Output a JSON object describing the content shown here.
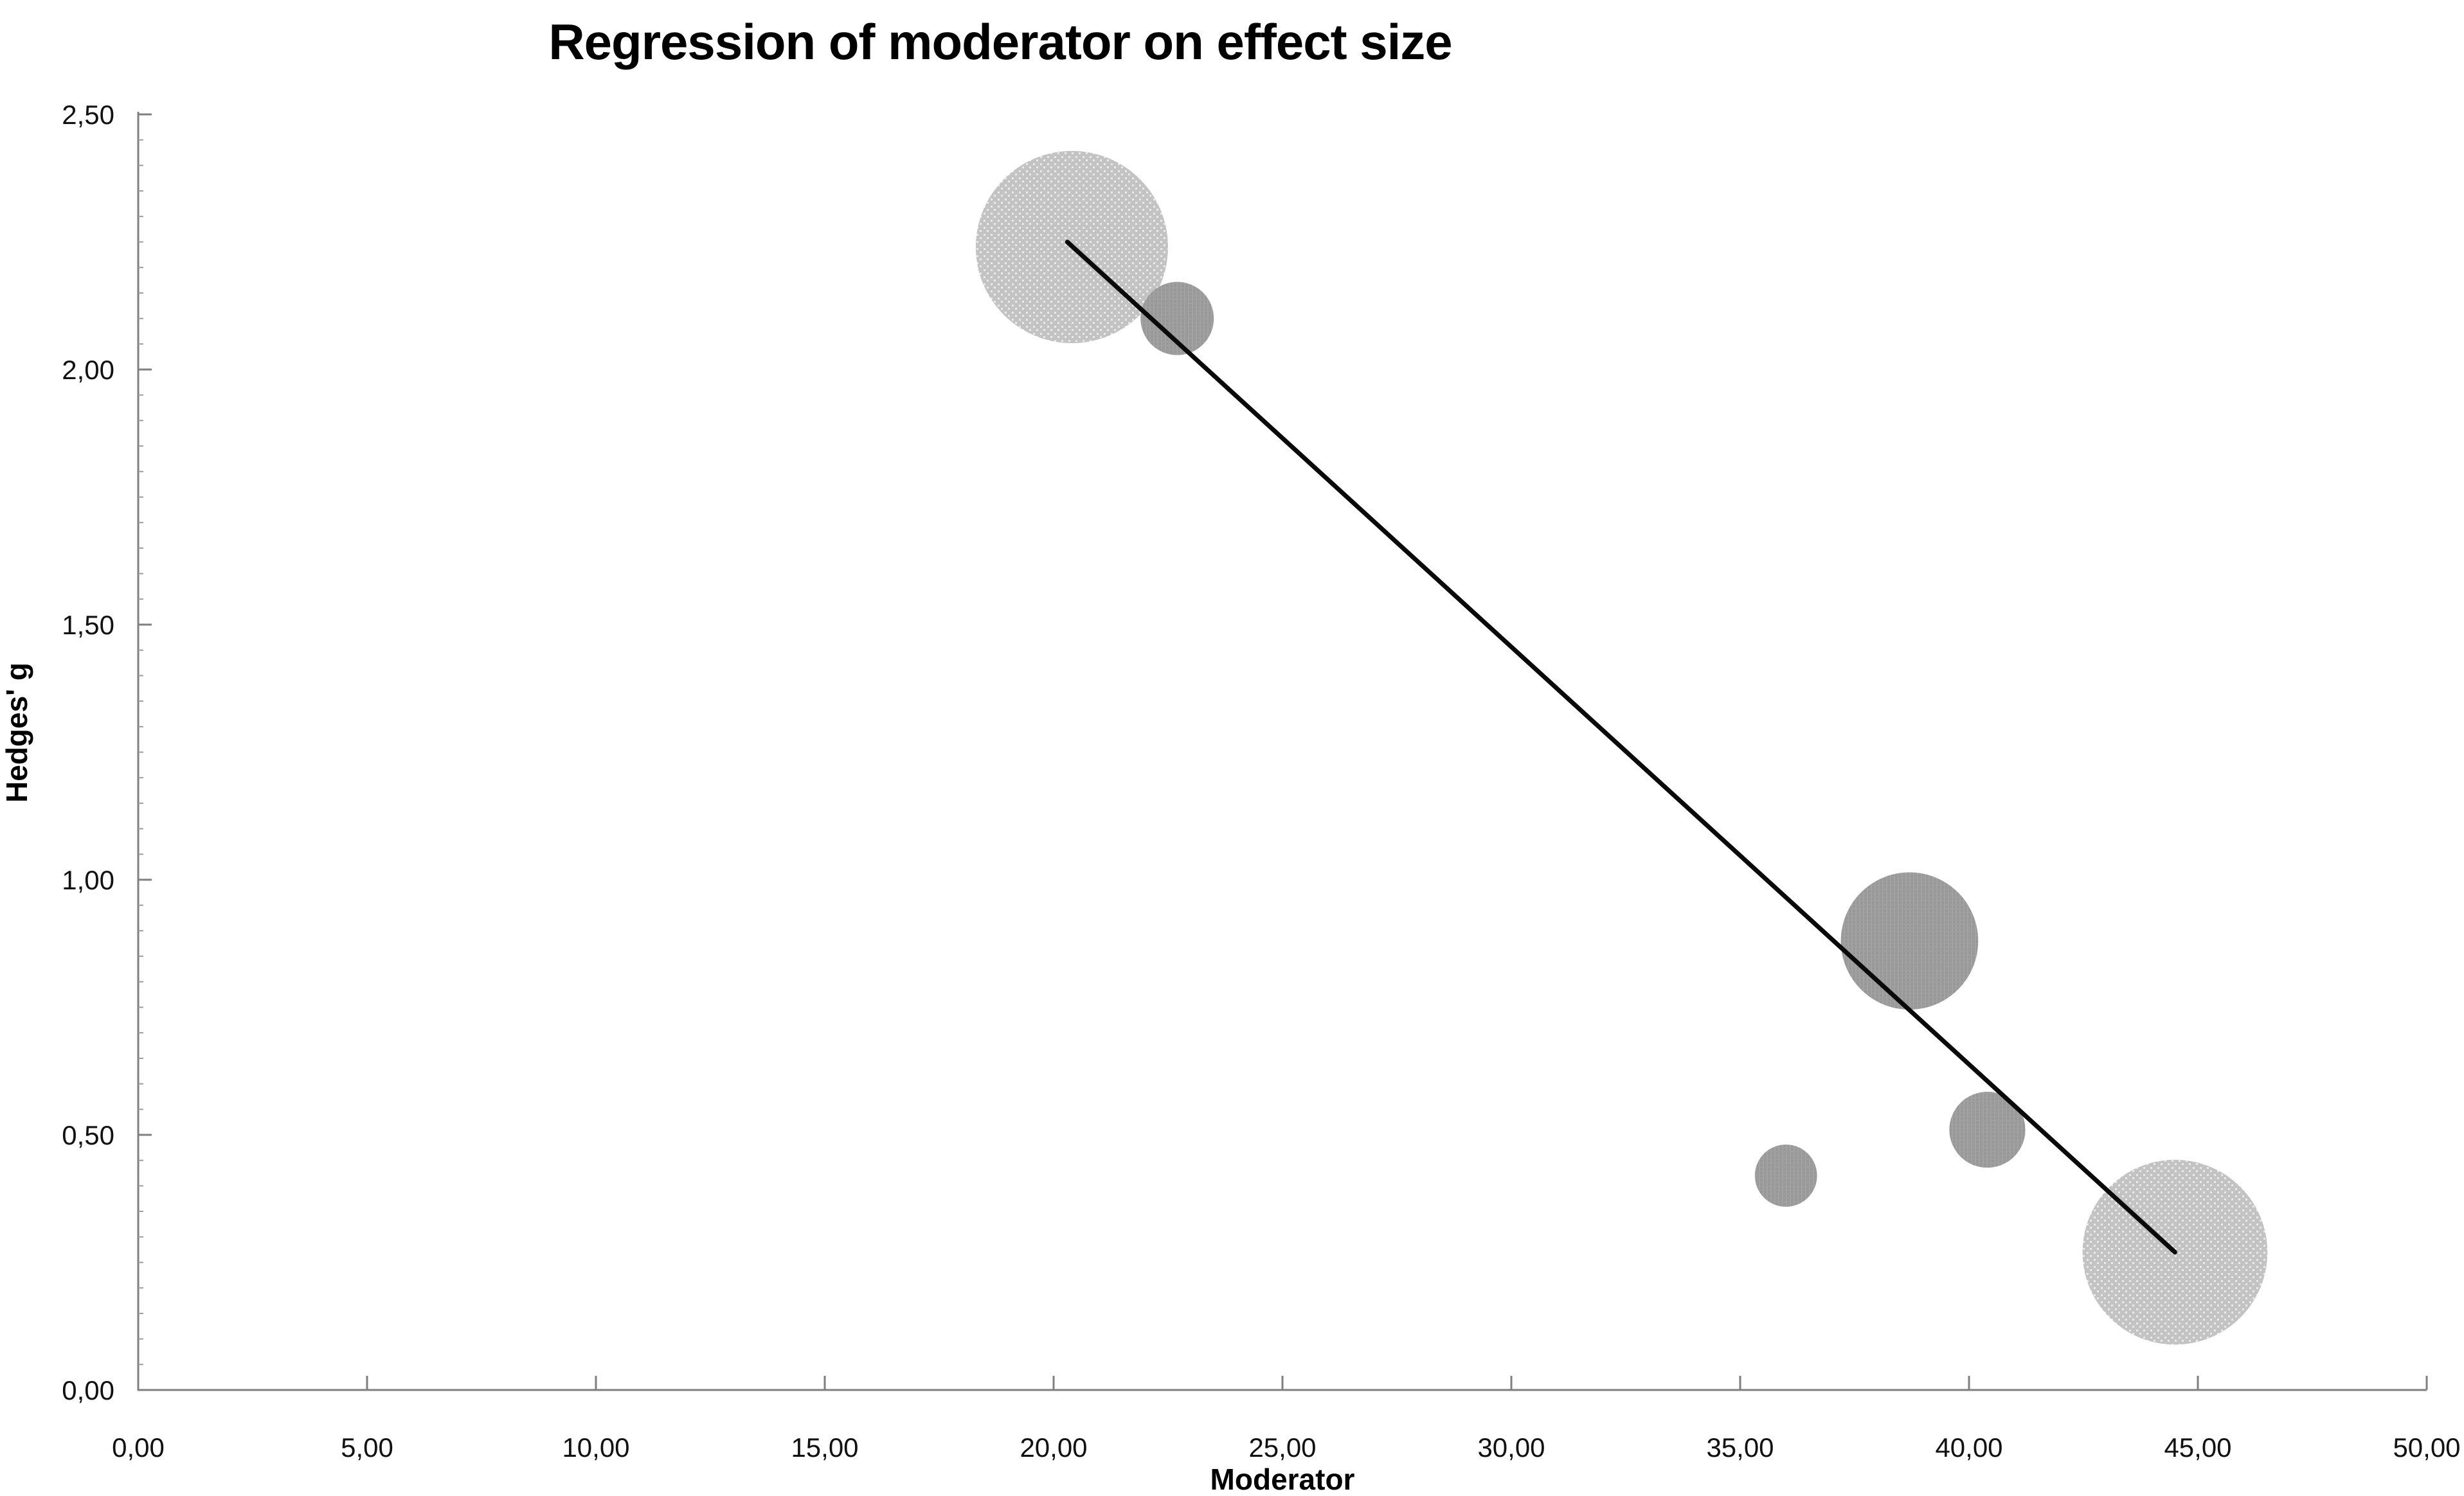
{
  "page": {
    "background_color": "#ffffff"
  },
  "chart_data": {
    "type": "scatter",
    "subtype": "bubble-meta-regression",
    "title": "Regression of moderator on effect size",
    "xlabel": "Moderator",
    "ylabel": "Hedges' g",
    "xlim": [
      0,
      50
    ],
    "ylim": [
      0,
      2.5
    ],
    "grid": "off",
    "legend": "none",
    "decimal_separator": ",",
    "x_ticks": {
      "values": [
        0,
        5,
        10,
        15,
        20,
        25,
        30,
        35,
        40,
        45,
        50
      ],
      "labels": [
        "0,00",
        "5,00",
        "10,00",
        "15,00",
        "20,00",
        "25,00",
        "30,00",
        "35,00",
        "40,00",
        "45,00",
        "50,00"
      ]
    },
    "y_ticks": {
      "values": [
        0,
        0.5,
        1,
        1.5,
        2,
        2.5
      ],
      "labels": [
        "0,00",
        "0,50",
        "1,00",
        "1,50",
        "2,00",
        "2,50"
      ]
    },
    "y_minor_tick_step": 0.05,
    "series": [
      {
        "name": "bubbles-light",
        "shade": "light",
        "points": [
          {
            "x": 20.4,
            "y": 2.24,
            "r": 2.1
          },
          {
            "x": 44.5,
            "y": 0.27,
            "r": 2.02
          }
        ]
      },
      {
        "name": "bubbles-dark",
        "shade": "dark",
        "points": [
          {
            "x": 22.7,
            "y": 2.1,
            "r": 0.8
          },
          {
            "x": 38.7,
            "y": 0.88,
            "r": 1.5
          },
          {
            "x": 40.4,
            "y": 0.51,
            "r": 0.83
          },
          {
            "x": 36.0,
            "y": 0.42,
            "r": 0.68
          }
        ]
      }
    ],
    "regression_line": {
      "x1": 20.3,
      "y1": 2.25,
      "x2": 44.5,
      "y2": 0.27
    },
    "colors": {
      "background": "#ffffff",
      "axis_line": "#7f7f7f",
      "major_tick": "#7f7f7f",
      "minor_tick": "#9c9c9c",
      "label_text": "#111111",
      "bubble_light_base": "#c3c3c3",
      "bubble_light_dot": "#eaeaea",
      "bubble_dark_base": "#989898",
      "bubble_dark_stripe": "#a3a3a3",
      "bubble_dark_check": "#a0a0a0",
      "regression_line": "#0a0a0a"
    }
  }
}
